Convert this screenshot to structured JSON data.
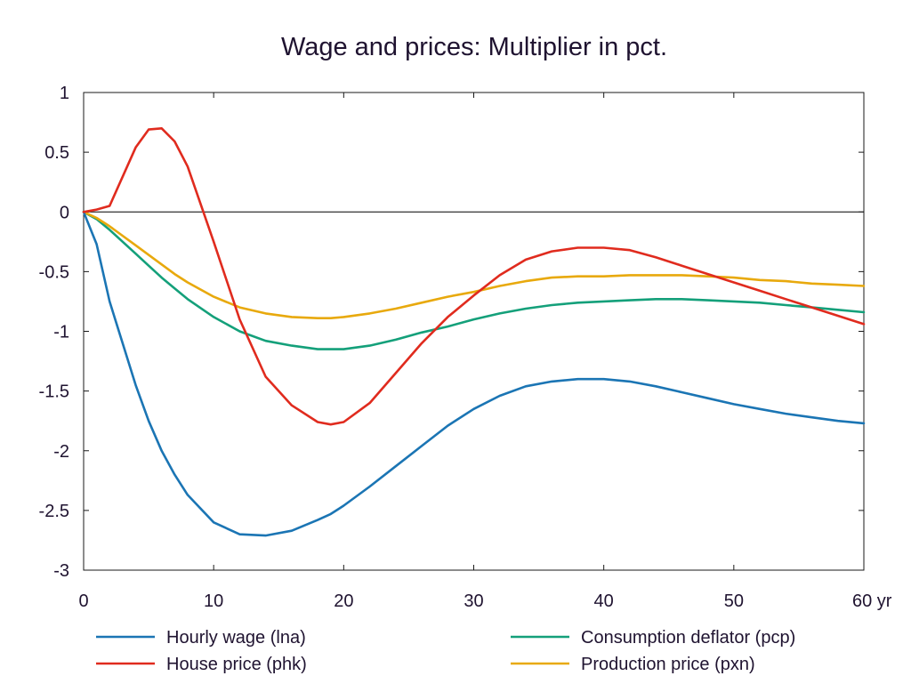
{
  "chart_data": {
    "type": "line",
    "title": "Wage and prices: Multiplier in pct.",
    "xlabel": "",
    "ylabel": "",
    "xlim": [
      0,
      60
    ],
    "ylim": [
      -3,
      1
    ],
    "x_ticks": [
      0,
      10,
      20,
      30,
      40,
      50,
      60
    ],
    "x_tick_labels": [
      "0",
      "10",
      "20",
      "30",
      "40",
      "50",
      "60 yr"
    ],
    "y_ticks": [
      1,
      0.5,
      0,
      -0.5,
      -1,
      -1.5,
      -2,
      -2.5,
      -3
    ],
    "y_tick_labels": [
      "1",
      "0.5",
      "0",
      "-0.5",
      "-1",
      "-1.5",
      "-2",
      "-2.5",
      "-3"
    ],
    "grid": false,
    "zero_line": true,
    "legend_position": "bottom",
    "x": [
      0,
      1,
      2,
      4,
      5,
      6,
      7,
      8,
      10,
      12,
      14,
      16,
      18,
      19,
      20,
      22,
      24,
      26,
      28,
      30,
      32,
      34,
      36,
      38,
      40,
      42,
      44,
      46,
      48,
      50,
      52,
      54,
      56,
      58,
      60
    ],
    "series": [
      {
        "name": "Hourly wage (lna)",
        "color": "#1b75b4",
        "values": [
          0,
          -0.27,
          -0.75,
          -1.45,
          -1.75,
          -2.0,
          -2.2,
          -2.37,
          -2.6,
          -2.7,
          -2.71,
          -2.67,
          -2.58,
          -2.53,
          -2.46,
          -2.3,
          -2.13,
          -1.96,
          -1.79,
          -1.65,
          -1.54,
          -1.46,
          -1.42,
          -1.4,
          -1.4,
          -1.42,
          -1.46,
          -1.51,
          -1.56,
          -1.61,
          -1.65,
          -1.69,
          -1.72,
          -1.75,
          -1.77
        ]
      },
      {
        "name": "Consumption deflator (pcp)",
        "color": "#14a07a",
        "values": [
          0,
          -0.06,
          -0.15,
          -0.35,
          -0.45,
          -0.55,
          -0.64,
          -0.73,
          -0.88,
          -1.0,
          -1.08,
          -1.12,
          -1.15,
          -1.15,
          -1.15,
          -1.12,
          -1.07,
          -1.01,
          -0.96,
          -0.9,
          -0.85,
          -0.81,
          -0.78,
          -0.76,
          -0.75,
          -0.74,
          -0.73,
          -0.73,
          -0.74,
          -0.75,
          -0.76,
          -0.78,
          -0.8,
          -0.82,
          -0.84
        ]
      },
      {
        "name": "House price (phk)",
        "color": "#e02b1e",
        "values": [
          0,
          0.02,
          0.05,
          0.54,
          0.69,
          0.7,
          0.59,
          0.38,
          -0.25,
          -0.9,
          -1.38,
          -1.62,
          -1.76,
          -1.78,
          -1.76,
          -1.6,
          -1.35,
          -1.1,
          -0.88,
          -0.7,
          -0.53,
          -0.4,
          -0.33,
          -0.3,
          -0.3,
          -0.32,
          -0.38,
          -0.45,
          -0.52,
          -0.59,
          -0.66,
          -0.73,
          -0.8,
          -0.87,
          -0.94
        ]
      },
      {
        "name": "Production price (pxn)",
        "color": "#e8a90d",
        "values": [
          0,
          -0.05,
          -0.12,
          -0.28,
          -0.36,
          -0.44,
          -0.52,
          -0.59,
          -0.71,
          -0.8,
          -0.85,
          -0.88,
          -0.89,
          -0.89,
          -0.88,
          -0.85,
          -0.81,
          -0.76,
          -0.71,
          -0.67,
          -0.62,
          -0.58,
          -0.55,
          -0.54,
          -0.54,
          -0.53,
          -0.53,
          -0.53,
          -0.54,
          -0.55,
          -0.57,
          -0.58,
          -0.6,
          -0.61,
          -0.62
        ]
      }
    ]
  }
}
